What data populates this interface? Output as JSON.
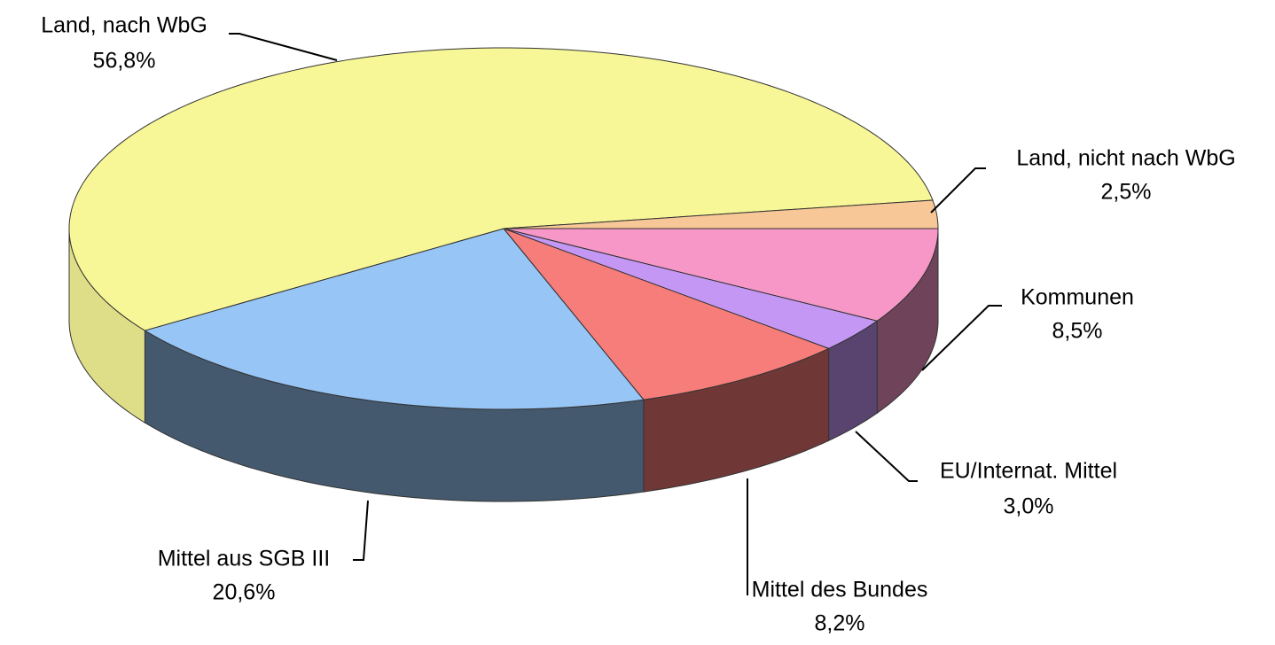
{
  "chart_data": {
    "type": "pie",
    "categories": [
      "Kommunen",
      "EU/Internat. Mittel",
      "Mittel des Bundes",
      "Mittel aus SGB III",
      "Land, nach WbG",
      "Land, nicht nach WbG"
    ],
    "values": [
      8.5,
      3.0,
      8.2,
      20.6,
      56.8,
      2.5
    ],
    "value_labels": [
      "8,5%",
      "3,0%",
      "8,2%",
      "20,6%",
      "56,8%",
      "2,5%"
    ],
    "colors": [
      "#f797c7",
      "#c497f5",
      "#f77d7a",
      "#97c5f5",
      "#f7f797",
      "#f7c797"
    ]
  }
}
